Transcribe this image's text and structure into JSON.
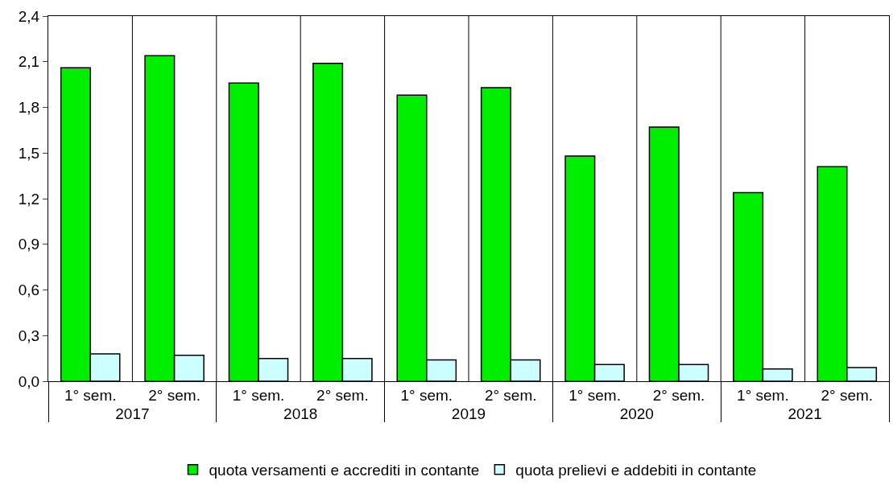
{
  "chart_data": {
    "type": "bar",
    "categories": [
      "1° sem.",
      "2° sem.",
      "1° sem.",
      "2° sem.",
      "1° sem.",
      "2° sem.",
      "1° sem.",
      "2° sem.",
      "1° sem.",
      "2° sem."
    ],
    "annotations": [
      "2017",
      "2018",
      "2019",
      "2020",
      "2021"
    ],
    "series": [
      {
        "name": "quota versamenti e accrediti in contante",
        "color": "#00ee00",
        "values": [
          2.06,
          2.14,
          1.96,
          2.09,
          1.88,
          1.93,
          1.48,
          1.67,
          1.24,
          1.41
        ]
      },
      {
        "name": "quota prelievi e addebiti in contante",
        "color": "#ccffff",
        "values": [
          0.18,
          0.17,
          0.15,
          0.15,
          0.14,
          0.14,
          0.11,
          0.11,
          0.08,
          0.09
        ]
      }
    ],
    "ylim": [
      0,
      2.4
    ],
    "yticks": [
      {
        "value": 0,
        "label": "0,0"
      },
      {
        "value": 0.3,
        "label": "0,3"
      },
      {
        "value": 0.6,
        "label": "0,6"
      },
      {
        "value": 0.9,
        "label": "0,9"
      },
      {
        "value": 1.2,
        "label": "1,2"
      },
      {
        "value": 1.5,
        "label": "1,5"
      },
      {
        "value": 1.8,
        "label": "1,8"
      },
      {
        "value": 2.1,
        "label": "2,1"
      },
      {
        "value": 2.4,
        "label": "2,4"
      }
    ],
    "grid": "x",
    "legend": "bottom"
  }
}
